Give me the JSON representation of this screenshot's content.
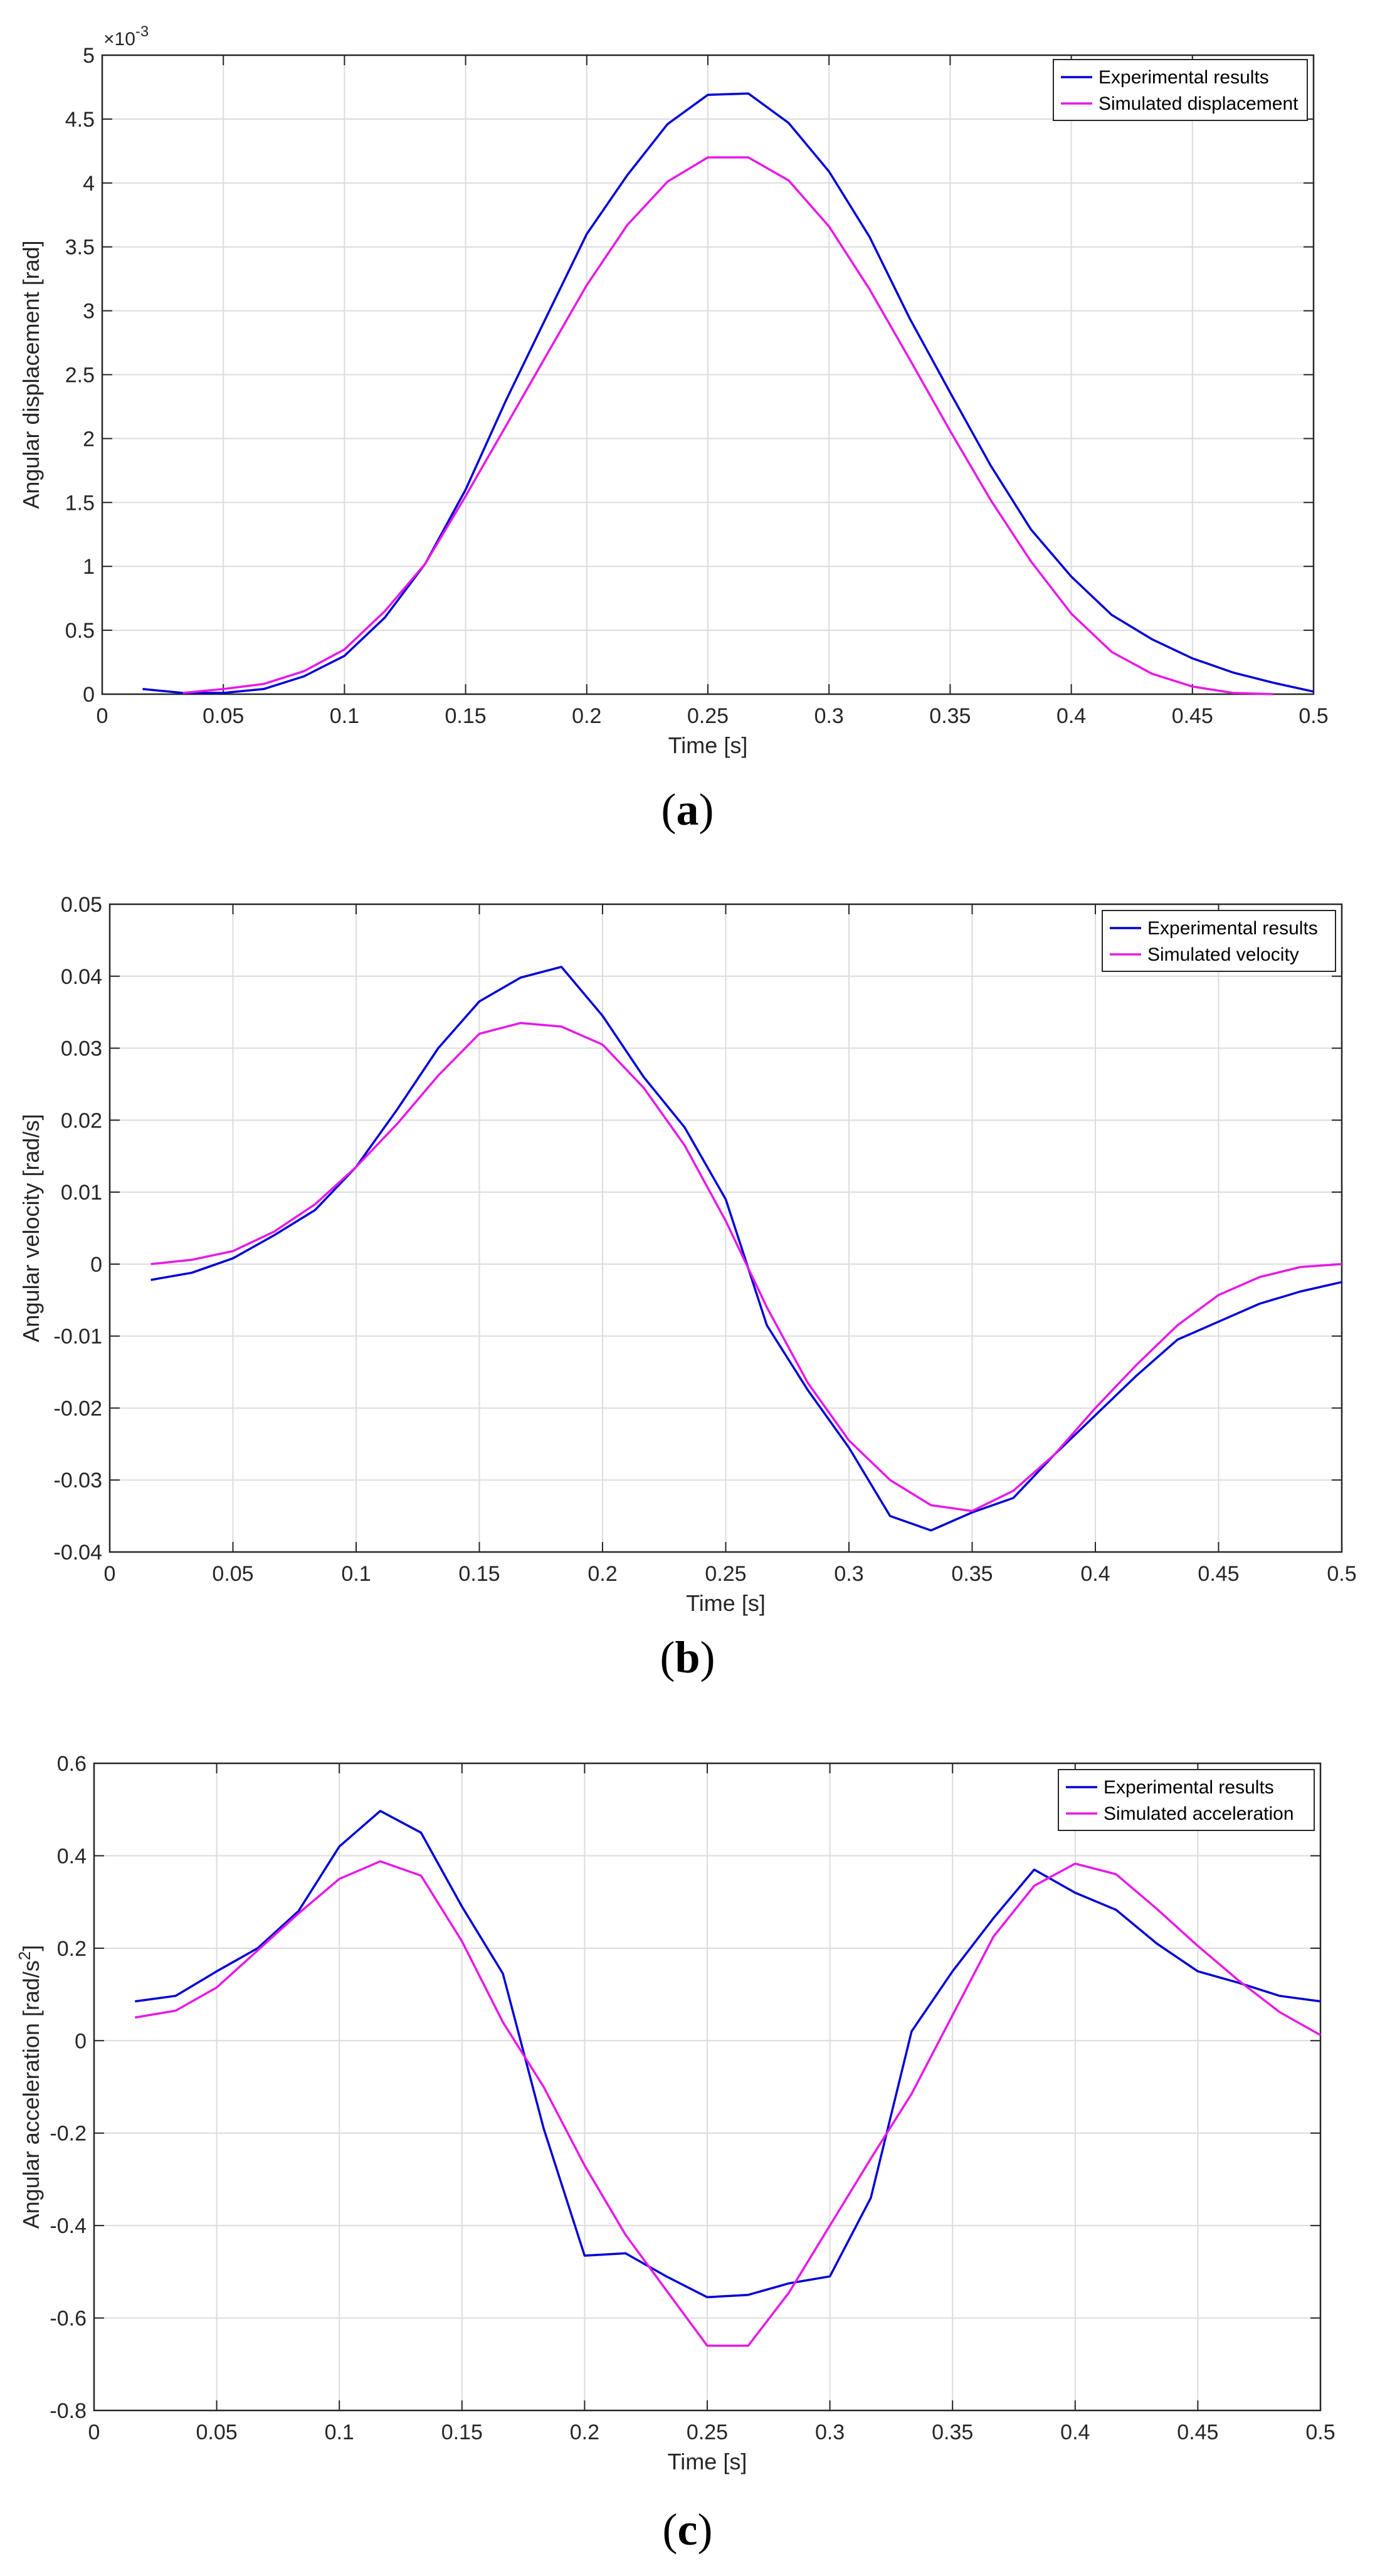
{
  "colors": {
    "experimental": "#0000d6",
    "simulated": "#e619e6",
    "grid": "#dcdcdc",
    "axis": "#262626"
  },
  "chart_data": [
    {
      "type": "line",
      "caption": "a",
      "xlabel": "Time [s]",
      "ylabel": "Angular displacement [rad]",
      "exponent_label": "×10",
      "exponent_power": "-3",
      "xlim": [
        0,
        0.5
      ],
      "ylim": [
        0,
        5
      ],
      "xticks": [
        0,
        0.05,
        0.1,
        0.15,
        0.2,
        0.25,
        0.3,
        0.35,
        0.4,
        0.45,
        0.5
      ],
      "xtick_labels": [
        "0",
        "0.05",
        "0.1",
        "0.15",
        "0.2",
        "0.25",
        "0.3",
        "0.35",
        "0.4",
        "0.45",
        "0.5"
      ],
      "yticks": [
        0,
        0.5,
        1,
        1.5,
        2,
        2.5,
        3,
        3.5,
        4,
        4.5,
        5
      ],
      "ytick_labels": [
        "0",
        "0.5",
        "1",
        "1.5",
        "2",
        "2.5",
        "3",
        "3.5",
        "4",
        "4.5",
        "5"
      ],
      "grid": true,
      "legend_position": "top-right",
      "series": [
        {
          "name": "Experimental results",
          "color_key": "experimental",
          "x": [
            0.0167,
            0.0333,
            0.05,
            0.0667,
            0.0833,
            0.1,
            0.1167,
            0.1333,
            0.15,
            0.1667,
            0.1833,
            0.2,
            0.2167,
            0.2333,
            0.25,
            0.2667,
            0.2833,
            0.3,
            0.3167,
            0.3333,
            0.35,
            0.3667,
            0.3833,
            0.4,
            0.4167,
            0.4333,
            0.45,
            0.4667,
            0.4833,
            0.5
          ],
          "y": [
            0.04,
            0.01,
            0.01,
            0.04,
            0.14,
            0.3,
            0.6,
            1.02,
            1.6,
            2.3,
            2.95,
            3.6,
            4.06,
            4.46,
            4.69,
            4.7,
            4.47,
            4.09,
            3.58,
            2.94,
            2.36,
            1.79,
            1.29,
            0.92,
            0.62,
            0.43,
            0.28,
            0.17,
            0.09,
            0.02
          ]
        },
        {
          "name": "Simulated displacement",
          "color_key": "simulated",
          "x": [
            0.0333,
            0.05,
            0.0667,
            0.0833,
            0.1,
            0.1167,
            0.1333,
            0.15,
            0.1667,
            0.1833,
            0.2,
            0.2167,
            0.2333,
            0.25,
            0.2667,
            0.2833,
            0.3,
            0.3167,
            0.3333,
            0.35,
            0.3667,
            0.3833,
            0.4,
            0.4167,
            0.4333,
            0.45,
            0.4667,
            0.4833
          ],
          "y": [
            0.01,
            0.04,
            0.08,
            0.18,
            0.35,
            0.65,
            1.02,
            1.55,
            2.1,
            2.65,
            3.2,
            3.67,
            4.01,
            4.2,
            4.2,
            4.02,
            3.66,
            3.17,
            2.62,
            2.06,
            1.52,
            1.04,
            0.63,
            0.33,
            0.16,
            0.06,
            0.01,
            0.0
          ]
        }
      ]
    },
    {
      "type": "line",
      "caption": "b",
      "xlabel": "Time [s]",
      "ylabel": "Angular velocity [rad/s]",
      "xlim": [
        0,
        0.5
      ],
      "ylim": [
        -0.04,
        0.05
      ],
      "xticks": [
        0,
        0.05,
        0.1,
        0.15,
        0.2,
        0.25,
        0.3,
        0.35,
        0.4,
        0.45,
        0.5
      ],
      "xtick_labels": [
        "0",
        "0.05",
        "0.1",
        "0.15",
        "0.2",
        "0.25",
        "0.3",
        "0.35",
        "0.4",
        "0.45",
        "0.5"
      ],
      "yticks": [
        -0.04,
        -0.03,
        -0.02,
        -0.01,
        0,
        0.01,
        0.02,
        0.03,
        0.04,
        0.05
      ],
      "ytick_labels": [
        "-0.04",
        "-0.03",
        "-0.02",
        "-0.01",
        "0",
        "0.01",
        "0.02",
        "0.03",
        "0.04",
        "0.05"
      ],
      "grid": true,
      "legend_position": "top-right",
      "series": [
        {
          "name": "Experimental results",
          "color_key": "experimental",
          "x": [
            0.0167,
            0.0333,
            0.05,
            0.0667,
            0.0833,
            0.1,
            0.1167,
            0.1333,
            0.15,
            0.1667,
            0.1833,
            0.2,
            0.2167,
            0.2333,
            0.25,
            0.2667,
            0.2833,
            0.3,
            0.3167,
            0.3333,
            0.35,
            0.3667,
            0.3833,
            0.4,
            0.4167,
            0.4333,
            0.45,
            0.4667,
            0.4833,
            0.5
          ],
          "y": [
            -0.0022,
            -0.0012,
            0.0008,
            0.004,
            0.0075,
            0.0135,
            0.0215,
            0.03,
            0.0365,
            0.0398,
            0.0413,
            0.0345,
            0.026,
            0.019,
            0.009,
            -0.0085,
            -0.0175,
            -0.0255,
            -0.035,
            -0.037,
            -0.0345,
            -0.0325,
            -0.0265,
            -0.021,
            -0.0155,
            -0.0105,
            -0.008,
            -0.0055,
            -0.0038,
            -0.0025
          ]
        },
        {
          "name": "Simulated velocity",
          "color_key": "simulated",
          "x": [
            0.0167,
            0.0333,
            0.05,
            0.0667,
            0.0833,
            0.1,
            0.1167,
            0.1333,
            0.15,
            0.1667,
            0.1833,
            0.2,
            0.2167,
            0.2333,
            0.25,
            0.2667,
            0.2833,
            0.3,
            0.3167,
            0.3333,
            0.35,
            0.3667,
            0.3833,
            0.4,
            0.4167,
            0.4333,
            0.45,
            0.4667,
            0.4833,
            0.5
          ],
          "y": [
            0.0,
            0.0006,
            0.0018,
            0.0045,
            0.0083,
            0.0135,
            0.0195,
            0.0262,
            0.032,
            0.0335,
            0.033,
            0.0305,
            0.0245,
            0.0165,
            0.006,
            -0.006,
            -0.0165,
            -0.0245,
            -0.03,
            -0.0335,
            -0.0343,
            -0.0315,
            -0.0265,
            -0.02,
            -0.014,
            -0.0085,
            -0.0043,
            -0.0018,
            -0.0004,
            0.0
          ]
        }
      ]
    },
    {
      "type": "line",
      "caption": "c",
      "xlabel": "Time [s]",
      "ylabel": "Angular acceleration [rad/s",
      "ylabel_sup": "2",
      "ylabel_end": "]",
      "xlim": [
        0,
        0.5
      ],
      "ylim": [
        -0.8,
        0.6
      ],
      "xticks": [
        0,
        0.05,
        0.1,
        0.15,
        0.2,
        0.25,
        0.3,
        0.35,
        0.4,
        0.45,
        0.5
      ],
      "xtick_labels": [
        "0",
        "0.05",
        "0.1",
        "0.15",
        "0.2",
        "0.25",
        "0.3",
        "0.35",
        "0.4",
        "0.45",
        "0.5"
      ],
      "yticks": [
        -0.8,
        -0.6,
        -0.4,
        -0.2,
        0,
        0.2,
        0.4,
        0.6
      ],
      "ytick_labels": [
        "-0.8",
        "-0.6",
        "-0.4",
        "-0.2",
        "0",
        "0.2",
        "0.4",
        "0.6"
      ],
      "grid": true,
      "legend_position": "top-right",
      "series": [
        {
          "name": "Experimental results",
          "color_key": "experimental",
          "x": [
            0.0167,
            0.0333,
            0.05,
            0.0667,
            0.0833,
            0.1,
            0.1167,
            0.1333,
            0.15,
            0.1667,
            0.1833,
            0.2,
            0.2167,
            0.2333,
            0.25,
            0.2667,
            0.2833,
            0.3,
            0.3167,
            0.3333,
            0.35,
            0.3667,
            0.3833,
            0.4,
            0.4167,
            0.4333,
            0.45,
            0.4667,
            0.4833,
            0.5
          ],
          "y": [
            0.085,
            0.097,
            0.15,
            0.2,
            0.28,
            0.42,
            0.497,
            0.45,
            0.29,
            0.145,
            -0.19,
            -0.465,
            -0.46,
            -0.51,
            -0.555,
            -0.55,
            -0.525,
            -0.51,
            -0.34,
            0.02,
            0.15,
            0.265,
            0.37,
            0.32,
            0.283,
            0.21,
            0.15,
            0.125,
            0.097,
            0.085
          ]
        },
        {
          "name": "Simulated acceleration",
          "color_key": "simulated",
          "x": [
            0.0167,
            0.0333,
            0.05,
            0.0667,
            0.0833,
            0.1,
            0.1167,
            0.1333,
            0.15,
            0.1667,
            0.1833,
            0.2,
            0.2167,
            0.2333,
            0.25,
            0.2667,
            0.2833,
            0.3,
            0.3167,
            0.3333,
            0.35,
            0.3667,
            0.3833,
            0.4,
            0.4167,
            0.4333,
            0.45,
            0.4667,
            0.4833,
            0.5
          ],
          "y": [
            0.05,
            0.065,
            0.115,
            0.195,
            0.275,
            0.35,
            0.388,
            0.357,
            0.215,
            0.04,
            -0.1,
            -0.27,
            -0.42,
            -0.54,
            -0.66,
            -0.66,
            -0.545,
            -0.4,
            -0.255,
            -0.115,
            0.055,
            0.225,
            0.335,
            0.383,
            0.36,
            0.285,
            0.205,
            0.13,
            0.062,
            0.012
          ]
        }
      ]
    }
  ]
}
